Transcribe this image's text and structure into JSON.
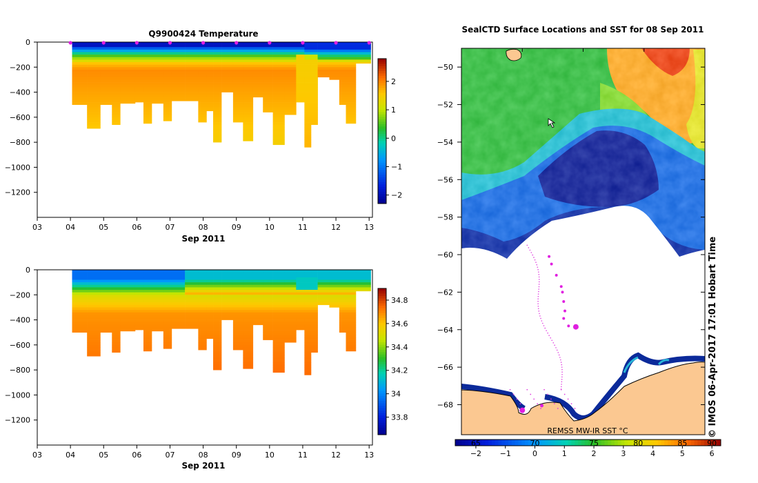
{
  "chart_data": [
    {
      "id": "temperature-section",
      "type": "heatmap",
      "title": "Q9900424  Temperature",
      "xlabel": "Sep 2011",
      "ylabel": "",
      "x_ticks": [
        "03",
        "04",
        "05",
        "06",
        "07",
        "08",
        "09",
        "10",
        "11",
        "12",
        "13"
      ],
      "xlim": [
        3,
        13.1
      ],
      "ylim": [
        -1400,
        0
      ],
      "y_ticks": [
        0,
        -200,
        -400,
        -600,
        -800,
        -1000,
        -1200
      ],
      "colorbar": {
        "min": -2.3,
        "max": 2.8,
        "ticks": [
          -2,
          -1,
          0,
          1,
          2
        ]
      },
      "profile_markers_day": [
        4.0,
        5.0,
        6.0,
        7.0,
        8.0,
        9.0,
        10.0,
        11.0,
        12.0,
        13.0
      ],
      "casts": [
        {
          "start": 4.05,
          "end": 4.5,
          "max_depth": 500
        },
        {
          "start": 4.5,
          "end": 4.9,
          "max_depth": 690
        },
        {
          "start": 4.9,
          "end": 5.25,
          "max_depth": 500
        },
        {
          "start": 5.25,
          "end": 5.5,
          "max_depth": 660
        },
        {
          "start": 5.5,
          "end": 5.95,
          "max_depth": 490
        },
        {
          "start": 5.95,
          "end": 6.2,
          "max_depth": 480
        },
        {
          "start": 6.2,
          "end": 6.45,
          "max_depth": 650
        },
        {
          "start": 6.45,
          "end": 6.8,
          "max_depth": 490
        },
        {
          "start": 6.8,
          "end": 7.05,
          "max_depth": 630
        },
        {
          "start": 7.05,
          "end": 7.45,
          "max_depth": 470
        },
        {
          "start": 7.45,
          "end": 7.85,
          "max_depth": 470
        },
        {
          "start": 7.85,
          "end": 8.1,
          "max_depth": 640
        },
        {
          "start": 8.1,
          "end": 8.3,
          "max_depth": 550
        },
        {
          "start": 8.3,
          "end": 8.55,
          "max_depth": 800
        },
        {
          "start": 8.55,
          "end": 8.9,
          "max_depth": 400
        },
        {
          "start": 8.9,
          "end": 9.2,
          "max_depth": 640
        },
        {
          "start": 9.2,
          "end": 9.5,
          "max_depth": 790
        },
        {
          "start": 9.5,
          "end": 9.8,
          "max_depth": 440
        },
        {
          "start": 9.8,
          "end": 10.1,
          "max_depth": 560
        },
        {
          "start": 10.1,
          "end": 10.45,
          "max_depth": 820
        },
        {
          "start": 10.45,
          "end": 10.8,
          "max_depth": 580
        },
        {
          "start": 10.8,
          "end": 11.05,
          "max_depth": 480
        },
        {
          "start": 11.05,
          "end": 11.25,
          "max_depth": 840
        },
        {
          "start": 11.25,
          "end": 11.45,
          "max_depth": 660
        },
        {
          "start": 11.45,
          "end": 11.8,
          "max_depth": 280
        },
        {
          "start": 11.8,
          "end": 12.1,
          "max_depth": 300
        },
        {
          "start": 12.1,
          "end": 12.3,
          "max_depth": 500
        },
        {
          "start": 12.3,
          "end": 12.6,
          "max_depth": 650
        },
        {
          "start": 12.6,
          "end": 13.05,
          "max_depth": 170
        }
      ]
    },
    {
      "id": "salinity-section",
      "type": "heatmap",
      "title": "",
      "xlabel": "Sep 2011",
      "ylabel": "",
      "x_ticks": [
        "03",
        "04",
        "05",
        "06",
        "07",
        "08",
        "09",
        "10",
        "11",
        "12",
        "13"
      ],
      "xlim": [
        3,
        13.1
      ],
      "ylim": [
        -1400,
        0
      ],
      "y_ticks": [
        0,
        -200,
        -400,
        -600,
        -800,
        -1000,
        -1200
      ],
      "colorbar": {
        "min": 33.65,
        "max": 34.9,
        "ticks": [
          33.8,
          34,
          34.2,
          34.4,
          34.6,
          34.8
        ]
      }
    },
    {
      "id": "sst-map",
      "type": "heatmap",
      "title": "SealCTD Surface Locations and SST for 08 Sep 2011",
      "xlabel": "",
      "ylabel": "",
      "lat_range": [
        -69.6,
        -49
      ],
      "lat_ticks": [
        -50,
        -52,
        -54,
        -56,
        -58,
        -60,
        -62,
        -64,
        -66,
        -68
      ],
      "legend_label": "REMSS MW-IR SST °C",
      "side_label": "© IMOS 06-Apr-2017 17:01 Hobart Time",
      "colorbar": {
        "min": -2.7,
        "max": 6.3,
        "ticks_c": [
          -2,
          -1,
          0,
          1,
          2,
          3,
          4,
          5,
          6
        ],
        "ticks_f": [
          "65",
          "70",
          "75",
          "80",
          "85",
          "90"
        ],
        "ticks_f_at_c": [
          -2.0,
          0.0,
          2.0,
          3.5,
          5.0,
          6.0
        ]
      },
      "track": [
        {
          "lat": -60.1,
          "lon_frac": 0.36,
          "size": 2
        },
        {
          "lat": -60.5,
          "lon_frac": 0.37,
          "size": 2
        },
        {
          "lat": -61.1,
          "lon_frac": 0.39,
          "size": 2
        },
        {
          "lat": -61.7,
          "lon_frac": 0.41,
          "size": 2
        },
        {
          "lat": -62.0,
          "lon_frac": 0.415,
          "size": 2
        },
        {
          "lat": -62.5,
          "lon_frac": 0.42,
          "size": 2
        },
        {
          "lat": -63.0,
          "lon_frac": 0.425,
          "size": 2
        },
        {
          "lat": -63.4,
          "lon_frac": 0.42,
          "size": 2
        },
        {
          "lat": -63.8,
          "lon_frac": 0.44,
          "size": 2
        },
        {
          "lat": -63.85,
          "lon_frac": 0.47,
          "size": 4
        }
      ]
    }
  ]
}
